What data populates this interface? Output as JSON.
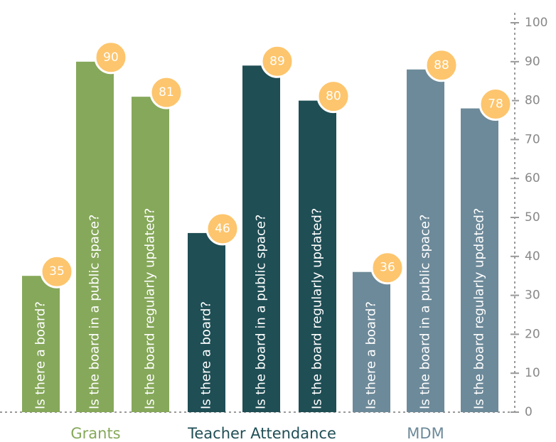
{
  "chart_data": {
    "type": "bar",
    "categories": [
      "Is there a board?",
      "Is the board in a public space?",
      "Is the board regularly updated?"
    ],
    "series": [
      {
        "name": "Grants",
        "color": "#86a85a",
        "values": [
          35,
          90,
          81
        ]
      },
      {
        "name": "Teacher Attendance",
        "color": "#1f4e55",
        "values": [
          46,
          89,
          80
        ]
      },
      {
        "name": "MDM",
        "color": "#6d8a9a",
        "values": [
          36,
          88,
          78
        ]
      }
    ],
    "label_color": "#fdc56d",
    "ylim": [
      0,
      100
    ],
    "yticks": [
      0,
      10,
      20,
      30,
      40,
      50,
      60,
      70,
      80,
      90,
      100
    ]
  }
}
